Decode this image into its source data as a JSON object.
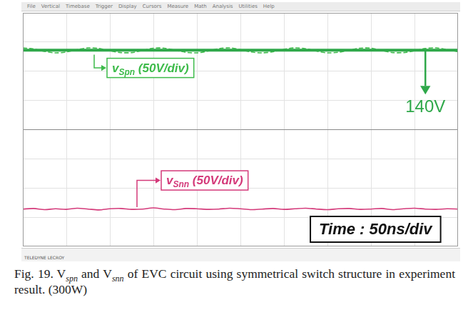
{
  "chart_data": {
    "type": "line",
    "x": [
      0,
      12.5,
      25,
      37.5,
      50,
      62.5,
      75,
      87.5,
      100,
      112.5,
      125,
      137.5,
      150,
      162.5,
      175,
      187.5,
      200,
      212.5,
      225,
      237.5,
      250,
      262.5,
      275,
      287.5,
      300,
      312.5,
      325,
      337.5,
      350,
      362.5,
      375,
      387.5,
      400,
      412.5,
      425,
      437.5,
      450,
      462.5,
      475,
      487.5,
      500
    ],
    "xlim": [
      0,
      500
    ],
    "xticks": [
      0,
      50,
      100,
      150,
      200,
      250,
      300,
      350,
      400,
      450,
      500
    ],
    "ylim": [
      -4,
      4
    ],
    "yticks": [
      -4,
      -3,
      -2,
      -1,
      0,
      1,
      2,
      3,
      4
    ],
    "grid": true,
    "tick_labels": false,
    "series": [
      {
        "label": [
          {
            "text": "v"
          },
          {
            "sub": "Spn"
          },
          {
            "text": " (50V/div)"
          }
        ],
        "color": "#3dbb4a",
        "line_style": "dashed",
        "values": [
          2.8,
          2.76,
          2.68,
          2.63,
          2.66,
          2.74,
          2.8,
          2.78,
          2.7,
          2.64,
          2.64,
          2.71,
          2.79,
          2.79,
          2.72,
          2.65,
          2.63,
          2.69,
          2.77,
          2.8,
          2.74,
          2.66,
          2.63,
          2.67,
          2.75,
          2.8,
          2.77,
          2.69,
          2.63,
          2.65,
          2.72,
          2.79,
          2.79,
          2.71,
          2.64,
          2.64,
          2.7,
          2.78,
          2.8,
          2.74,
          2.67
        ]
      },
      {
        "label": [
          {
            "text": "v"
          },
          {
            "sub": "Snn"
          },
          {
            "text": " (50V/div)"
          }
        ],
        "color": "#d43a7a",
        "line_style": "solid",
        "values": [
          -2.72,
          -2.7,
          -2.74,
          -2.71,
          -2.73,
          -2.69,
          -2.72,
          -2.75,
          -2.71,
          -2.7,
          -2.73,
          -2.72,
          -2.68,
          -2.72,
          -2.74,
          -2.7,
          -2.71,
          -2.73,
          -2.72,
          -2.69,
          -2.71,
          -2.74,
          -2.72,
          -2.7,
          -2.73,
          -2.71,
          -2.69,
          -2.72,
          -2.74,
          -2.71,
          -2.7,
          -2.73,
          -2.72,
          -2.7,
          -2.74,
          -2.71,
          -2.69,
          -2.72,
          -2.73,
          -2.71,
          -2.72
        ]
      }
    ],
    "annotations": [
      {
        "text": "140V",
        "y": 2.72,
        "color": "#2fa84a"
      }
    ],
    "time_label": "Time : 50ns/div"
  },
  "screen": {
    "menu": [
      "File",
      "Vertical",
      "Timebase",
      "Trigger",
      "Display",
      "Cursors",
      "Measure",
      "Math",
      "Analysis",
      "Utilities",
      "Help"
    ],
    "brand": "TELEDYNE LECROY"
  },
  "caption": [
    {
      "text": "Fig. 19. V"
    },
    {
      "sub": "spn"
    },
    {
      "text": " and V"
    },
    {
      "sub": "snn"
    },
    {
      "text": " of EVC circuit using symmetrical switch structure in experiment result. (300W)"
    }
  ]
}
